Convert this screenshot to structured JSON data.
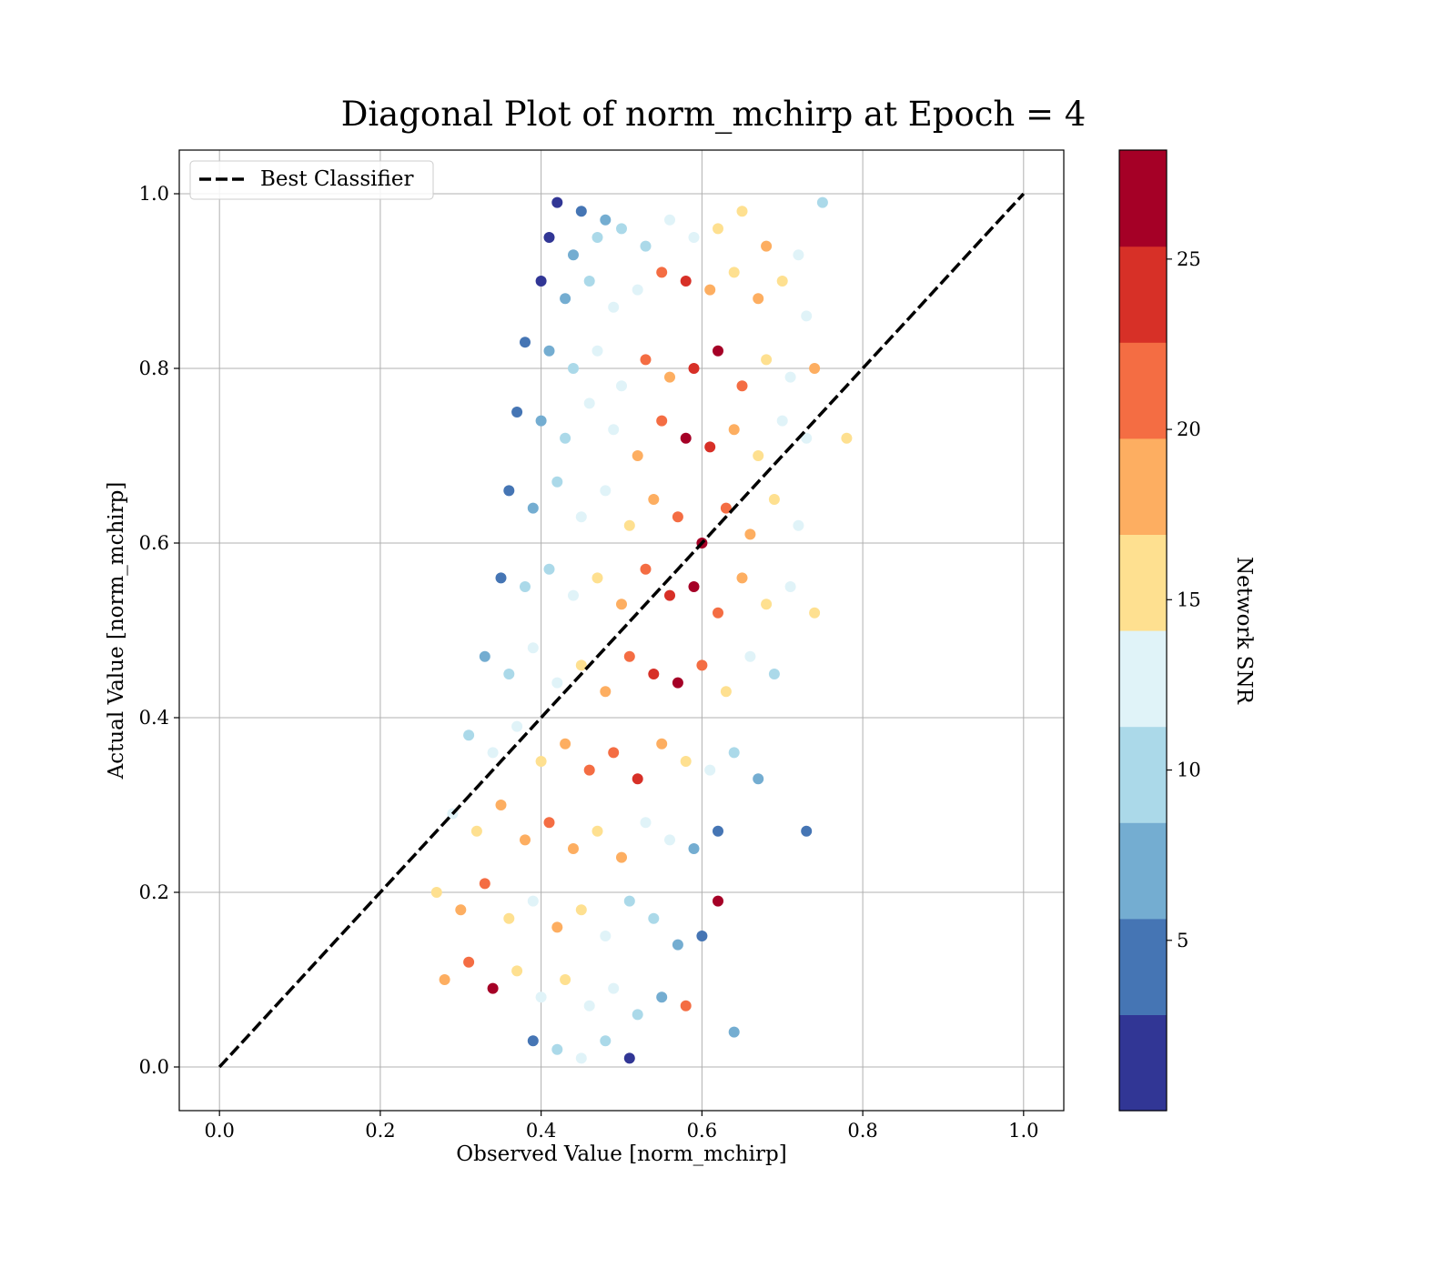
{
  "chart_data": {
    "type": "scatter",
    "title": "Diagonal Plot of norm_mchirp at Epoch = 4",
    "xlabel": "Observed Value [norm_mchirp]",
    "ylabel": "Actual Value [norm_mchirp]",
    "xlim": [
      -0.05,
      1.05
    ],
    "ylim": [
      -0.05,
      1.05
    ],
    "xticks": [
      "0.0",
      "0.2",
      "0.4",
      "0.6",
      "0.8",
      "1.0"
    ],
    "yticks": [
      "0.0",
      "0.2",
      "0.4",
      "0.6",
      "0.8",
      "1.0"
    ],
    "xtick_values": [
      0.0,
      0.2,
      0.4,
      0.6,
      0.8,
      1.0
    ],
    "ytick_values": [
      0.0,
      0.2,
      0.4,
      0.6,
      0.8,
      1.0
    ],
    "grid": true,
    "legend": {
      "position": "top-left",
      "entries": [
        "Best Classifier"
      ]
    },
    "reference_line": {
      "name": "Best Classifier",
      "x": [
        0.0,
        1.0
      ],
      "y": [
        0.0,
        1.0
      ],
      "style": "dashed",
      "color": "#000000"
    },
    "colorbar": {
      "label": "Network SNR",
      "range": [
        0.0,
        28.2
      ],
      "ticks": [
        "5",
        "10",
        "15",
        "20",
        "25"
      ],
      "tick_values": [
        5,
        10,
        15,
        20,
        25
      ],
      "colors": [
        "#313695",
        "#4575b4",
        "#74add1",
        "#abd9e9",
        "#e0f3f8",
        "#fee090",
        "#fdae61",
        "#f46d43",
        "#d73027",
        "#a50026"
      ],
      "nbins": 10
    },
    "points": [
      [
        0.42,
        0.99,
        2.0
      ],
      [
        0.45,
        0.98,
        3.5
      ],
      [
        0.48,
        0.97,
        6.0
      ],
      [
        0.41,
        0.95,
        2.5
      ],
      [
        0.44,
        0.93,
        7.0
      ],
      [
        0.47,
        0.95,
        9.5
      ],
      [
        0.5,
        0.96,
        11.0
      ],
      [
        0.53,
        0.94,
        10.0
      ],
      [
        0.56,
        0.97,
        12.5
      ],
      [
        0.59,
        0.95,
        13.5
      ],
      [
        0.62,
        0.96,
        15.5
      ],
      [
        0.65,
        0.98,
        16.0
      ],
      [
        0.68,
        0.94,
        18.0
      ],
      [
        0.72,
        0.93,
        14.0
      ],
      [
        0.75,
        0.99,
        8.5
      ],
      [
        0.4,
        0.9,
        1.5
      ],
      [
        0.43,
        0.88,
        6.5
      ],
      [
        0.46,
        0.9,
        9.0
      ],
      [
        0.49,
        0.87,
        12.0
      ],
      [
        0.52,
        0.89,
        13.0
      ],
      [
        0.55,
        0.91,
        21.0
      ],
      [
        0.58,
        0.9,
        24.5
      ],
      [
        0.61,
        0.89,
        19.0
      ],
      [
        0.64,
        0.91,
        16.5
      ],
      [
        0.67,
        0.88,
        17.5
      ],
      [
        0.7,
        0.9,
        14.5
      ],
      [
        0.73,
        0.86,
        12.0
      ],
      [
        0.38,
        0.83,
        3.0
      ],
      [
        0.41,
        0.82,
        6.0
      ],
      [
        0.44,
        0.8,
        9.5
      ],
      [
        0.47,
        0.82,
        11.5
      ],
      [
        0.5,
        0.78,
        13.5
      ],
      [
        0.53,
        0.81,
        21.5
      ],
      [
        0.56,
        0.79,
        18.5
      ],
      [
        0.59,
        0.8,
        23.0
      ],
      [
        0.62,
        0.82,
        25.5
      ],
      [
        0.65,
        0.78,
        20.0
      ],
      [
        0.68,
        0.81,
        16.0
      ],
      [
        0.71,
        0.79,
        13.0
      ],
      [
        0.74,
        0.8,
        17.0
      ],
      [
        0.37,
        0.75,
        4.0
      ],
      [
        0.4,
        0.74,
        7.5
      ],
      [
        0.43,
        0.72,
        10.5
      ],
      [
        0.46,
        0.76,
        12.5
      ],
      [
        0.49,
        0.73,
        14.0
      ],
      [
        0.52,
        0.7,
        17.5
      ],
      [
        0.55,
        0.74,
        20.5
      ],
      [
        0.58,
        0.72,
        26.0
      ],
      [
        0.61,
        0.71,
        23.5
      ],
      [
        0.64,
        0.73,
        19.5
      ],
      [
        0.67,
        0.7,
        15.5
      ],
      [
        0.7,
        0.74,
        14.0
      ],
      [
        0.73,
        0.72,
        11.5
      ],
      [
        0.36,
        0.66,
        5.0
      ],
      [
        0.39,
        0.64,
        8.0
      ],
      [
        0.42,
        0.67,
        10.0
      ],
      [
        0.45,
        0.63,
        12.5
      ],
      [
        0.48,
        0.66,
        13.5
      ],
      [
        0.51,
        0.62,
        16.5
      ],
      [
        0.54,
        0.65,
        19.0
      ],
      [
        0.57,
        0.63,
        22.5
      ],
      [
        0.6,
        0.6,
        26.5
      ],
      [
        0.63,
        0.64,
        21.0
      ],
      [
        0.66,
        0.61,
        17.5
      ],
      [
        0.69,
        0.65,
        14.5
      ],
      [
        0.72,
        0.62,
        12.5
      ],
      [
        0.35,
        0.56,
        5.5
      ],
      [
        0.38,
        0.55,
        8.5
      ],
      [
        0.41,
        0.57,
        11.0
      ],
      [
        0.44,
        0.54,
        13.0
      ],
      [
        0.47,
        0.56,
        14.5
      ],
      [
        0.5,
        0.53,
        18.5
      ],
      [
        0.53,
        0.57,
        20.0
      ],
      [
        0.56,
        0.54,
        23.5
      ],
      [
        0.59,
        0.55,
        25.5
      ],
      [
        0.62,
        0.52,
        22.0
      ],
      [
        0.65,
        0.56,
        18.0
      ],
      [
        0.68,
        0.53,
        15.0
      ],
      [
        0.71,
        0.55,
        12.0
      ],
      [
        0.74,
        0.52,
        16.0
      ],
      [
        0.33,
        0.47,
        7.0
      ],
      [
        0.36,
        0.45,
        9.0
      ],
      [
        0.39,
        0.48,
        11.5
      ],
      [
        0.42,
        0.44,
        13.5
      ],
      [
        0.45,
        0.46,
        15.5
      ],
      [
        0.48,
        0.43,
        18.0
      ],
      [
        0.51,
        0.47,
        21.0
      ],
      [
        0.54,
        0.45,
        24.0
      ],
      [
        0.57,
        0.44,
        26.5
      ],
      [
        0.6,
        0.46,
        20.5
      ],
      [
        0.63,
        0.43,
        16.5
      ],
      [
        0.66,
        0.47,
        13.5
      ],
      [
        0.69,
        0.45,
        11.0
      ],
      [
        0.31,
        0.38,
        9.5
      ],
      [
        0.34,
        0.36,
        12.0
      ],
      [
        0.37,
        0.39,
        14.0
      ],
      [
        0.4,
        0.35,
        16.0
      ],
      [
        0.43,
        0.37,
        18.5
      ],
      [
        0.46,
        0.34,
        20.5
      ],
      [
        0.49,
        0.36,
        22.5
      ],
      [
        0.52,
        0.33,
        25.0
      ],
      [
        0.55,
        0.37,
        19.5
      ],
      [
        0.58,
        0.35,
        16.5
      ],
      [
        0.61,
        0.34,
        12.5
      ],
      [
        0.64,
        0.36,
        9.5
      ],
      [
        0.67,
        0.33,
        7.5
      ],
      [
        0.29,
        0.29,
        13.0
      ],
      [
        0.32,
        0.27,
        15.5
      ],
      [
        0.35,
        0.3,
        17.0
      ],
      [
        0.38,
        0.26,
        19.5
      ],
      [
        0.41,
        0.28,
        21.5
      ],
      [
        0.44,
        0.25,
        17.5
      ],
      [
        0.47,
        0.27,
        15.0
      ],
      [
        0.5,
        0.24,
        19.0
      ],
      [
        0.53,
        0.28,
        14.0
      ],
      [
        0.56,
        0.26,
        11.5
      ],
      [
        0.59,
        0.25,
        8.0
      ],
      [
        0.62,
        0.27,
        5.5
      ],
      [
        0.27,
        0.2,
        16.0
      ],
      [
        0.3,
        0.18,
        18.0
      ],
      [
        0.33,
        0.21,
        20.0
      ],
      [
        0.36,
        0.17,
        15.0
      ],
      [
        0.39,
        0.19,
        13.0
      ],
      [
        0.42,
        0.16,
        17.0
      ],
      [
        0.45,
        0.18,
        14.5
      ],
      [
        0.48,
        0.15,
        12.0
      ],
      [
        0.51,
        0.19,
        10.0
      ],
      [
        0.54,
        0.17,
        9.0
      ],
      [
        0.57,
        0.14,
        6.5
      ],
      [
        0.6,
        0.15,
        3.0
      ],
      [
        0.28,
        0.1,
        17.5
      ],
      [
        0.31,
        0.12,
        22.0
      ],
      [
        0.34,
        0.09,
        26.0
      ],
      [
        0.37,
        0.11,
        14.5
      ],
      [
        0.4,
        0.08,
        12.5
      ],
      [
        0.43,
        0.1,
        15.0
      ],
      [
        0.46,
        0.07,
        11.5
      ],
      [
        0.49,
        0.09,
        13.0
      ],
      [
        0.52,
        0.06,
        9.5
      ],
      [
        0.55,
        0.08,
        7.0
      ],
      [
        0.58,
        0.07,
        21.0
      ],
      [
        0.39,
        0.03,
        4.0
      ],
      [
        0.42,
        0.02,
        10.5
      ],
      [
        0.45,
        0.01,
        12.0
      ],
      [
        0.48,
        0.03,
        9.0
      ],
      [
        0.51,
        0.01,
        2.5
      ],
      [
        0.62,
        0.19,
        26.5
      ],
      [
        0.64,
        0.04,
        8.0
      ],
      [
        0.78,
        0.72,
        16.0
      ],
      [
        0.73,
        0.27,
        5.0
      ]
    ]
  }
}
